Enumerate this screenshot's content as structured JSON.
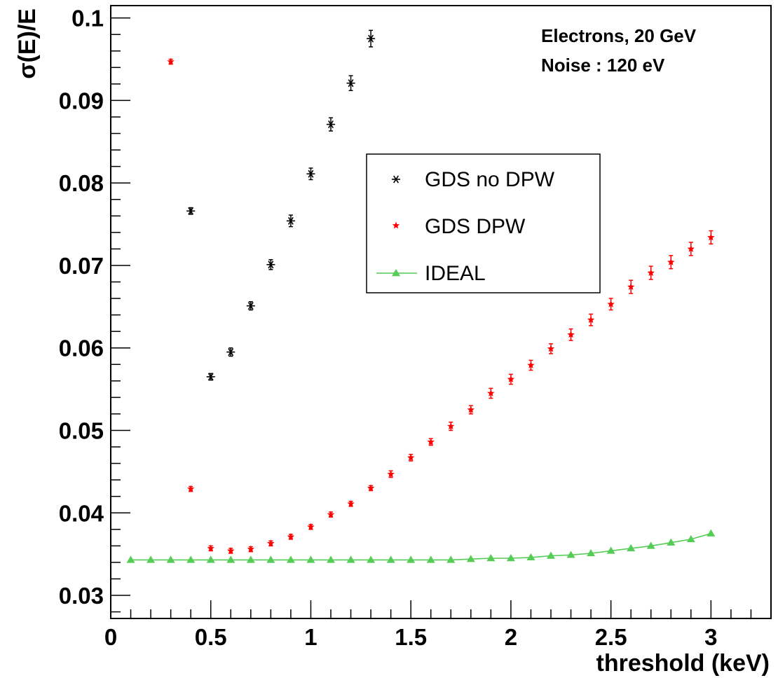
{
  "chart_data": {
    "type": "scatter",
    "title": "",
    "xlabel": "threshold (keV)",
    "ylabel": "σ(E)/E",
    "xlim": [
      0,
      3.3
    ],
    "ylim": [
      0.0272,
      0.1015
    ],
    "x_ticks": [
      "0",
      "0.5",
      "1",
      "1.5",
      "2",
      "2.5",
      "3"
    ],
    "y_ticks": [
      "0.03",
      "0.04",
      "0.05",
      "0.06",
      "0.07",
      "0.08",
      "0.09",
      "0.1"
    ],
    "annotations": [
      "Electrons, 20 GeV",
      "Noise : 120 eV"
    ],
    "legend_position": "center-right",
    "grid": false,
    "series": [
      {
        "name": "GDS no DPW",
        "marker": "asterisk",
        "color": "#000000",
        "x": [
          0.4,
          0.5,
          0.6,
          0.7,
          0.8,
          0.9,
          1.0,
          1.1,
          1.2,
          1.3
        ],
        "y": [
          0.0766,
          0.0565,
          0.0595,
          0.0651,
          0.0701,
          0.0754,
          0.0811,
          0.0871,
          0.0921,
          0.0975
        ],
        "err": [
          0.0004,
          0.0004,
          0.0005,
          0.0005,
          0.0006,
          0.0007,
          0.0007,
          0.0008,
          0.0009,
          0.001
        ]
      },
      {
        "name": "GDS DPW",
        "marker": "star",
        "color": "#ff0000",
        "x": [
          0.3,
          0.4,
          0.5,
          0.6,
          0.7,
          0.8,
          0.9,
          1.0,
          1.1,
          1.2,
          1.3,
          1.4,
          1.5,
          1.6,
          1.7,
          1.8,
          1.9,
          2.0,
          2.1,
          2.2,
          2.3,
          2.4,
          2.5,
          2.6,
          2.7,
          2.8,
          2.9,
          3.0
        ],
        "y": [
          0.0947,
          0.0429,
          0.0357,
          0.0354,
          0.0356,
          0.0363,
          0.0371,
          0.0383,
          0.0398,
          0.0411,
          0.043,
          0.0447,
          0.0467,
          0.0486,
          0.0505,
          0.0525,
          0.0545,
          0.0562,
          0.0579,
          0.0599,
          0.0616,
          0.0634,
          0.0653,
          0.0674,
          0.0691,
          0.0704,
          0.072,
          0.0734
        ],
        "err": [
          0.0003,
          0.0003,
          0.0003,
          0.0003,
          0.0003,
          0.0003,
          0.0003,
          0.0003,
          0.0003,
          0.0003,
          0.0003,
          0.0004,
          0.0004,
          0.0004,
          0.0005,
          0.0005,
          0.0006,
          0.0006,
          0.0006,
          0.0006,
          0.0007,
          0.0007,
          0.0007,
          0.0008,
          0.0008,
          0.0008,
          0.0008,
          0.0008
        ]
      },
      {
        "name": "IDEAL",
        "marker": "triangle",
        "color": "#55cc55",
        "line": true,
        "x": [
          0.1,
          0.2,
          0.3,
          0.4,
          0.5,
          0.6,
          0.7,
          0.8,
          0.9,
          1.0,
          1.1,
          1.2,
          1.3,
          1.4,
          1.5,
          1.6,
          1.7,
          1.8,
          1.9,
          2.0,
          2.1,
          2.2,
          2.3,
          2.4,
          2.5,
          2.6,
          2.7,
          2.8,
          2.9,
          3.0
        ],
        "y": [
          0.0343,
          0.0343,
          0.0343,
          0.0343,
          0.0343,
          0.0343,
          0.0343,
          0.0343,
          0.0343,
          0.0343,
          0.0343,
          0.0343,
          0.0343,
          0.0343,
          0.0343,
          0.0343,
          0.0343,
          0.0344,
          0.0345,
          0.0345,
          0.0346,
          0.0348,
          0.0349,
          0.0351,
          0.0354,
          0.0357,
          0.036,
          0.0364,
          0.0368,
          0.0375
        ]
      }
    ]
  }
}
